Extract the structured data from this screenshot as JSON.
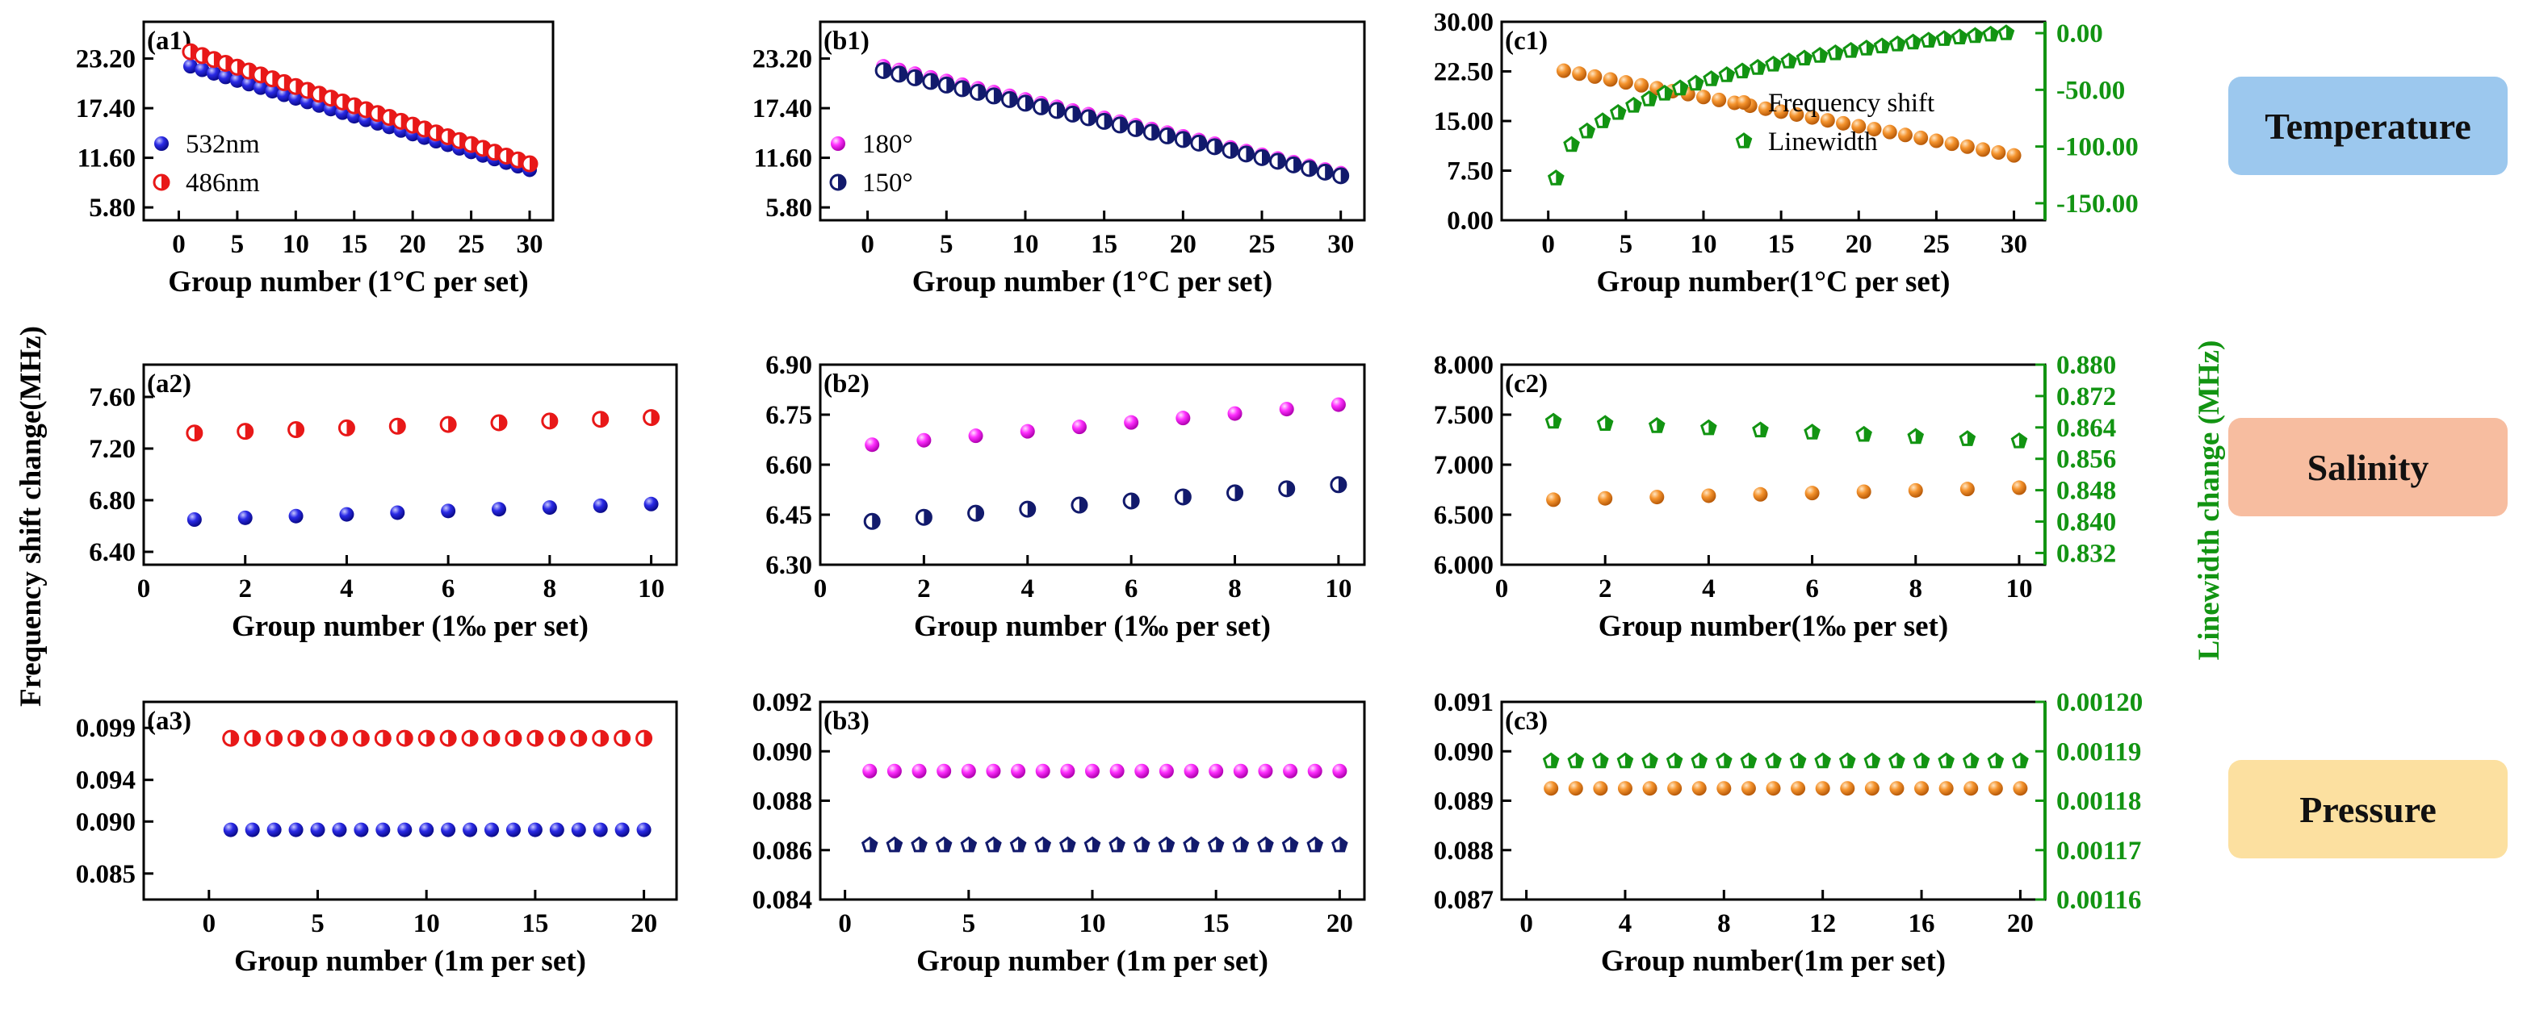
{
  "figure": {
    "ylabel_left": "Frequency shift change(MHz)",
    "ylabel_right": "Linewidth change (MHz)",
    "badges": [
      {
        "label": "Temperature",
        "color": "#9cc8ee"
      },
      {
        "label": "Salinity",
        "color": "#f7bda0"
      },
      {
        "label": "Pressure",
        "color": "#fce0a0"
      }
    ]
  },
  "colors": {
    "blue": "#1f1fdc",
    "red": "#e81818",
    "magenta": "#ff2cff",
    "navy": "#121a6c",
    "orange": "#f18e28",
    "green": "#129412"
  },
  "chart_data": [
    {
      "id": "a1",
      "tag": "(a1)",
      "type": "scatter",
      "xlabel": "Group number (1°C per set)",
      "xlim": [
        -3,
        32
      ],
      "xticks": [
        0,
        5,
        10,
        15,
        20,
        25,
        30
      ],
      "ylim": [
        4.3,
        27.5
      ],
      "yticks": [
        5.8,
        11.6,
        17.4,
        23.2
      ],
      "ytick_labels": [
        "5.80",
        "11.60",
        "17.40",
        "23.20"
      ],
      "legend": {
        "position": "lower-left",
        "entries": [
          {
            "label": "532nm",
            "series": 0
          },
          {
            "label": "486nm",
            "series": 1
          }
        ]
      },
      "series": [
        {
          "name": "532nm",
          "marker": "sphere",
          "color": "blue",
          "x_start": 1,
          "x_end": 30,
          "x_step": 1,
          "y_start": 22.3,
          "y_end": 10.2
        },
        {
          "name": "486nm",
          "marker": "half",
          "color": "red",
          "x_start": 1,
          "x_end": 30,
          "x_step": 1,
          "y_start": 24.0,
          "y_end": 10.9
        }
      ]
    },
    {
      "id": "b1",
      "tag": "(b1)",
      "type": "scatter",
      "xlabel": "Group number (1°C per set)",
      "xlim": [
        -3,
        31.5
      ],
      "xticks": [
        0,
        5,
        10,
        15,
        20,
        25,
        30
      ],
      "ylim": [
        4.3,
        27.5
      ],
      "yticks": [
        5.8,
        11.6,
        17.4,
        23.2
      ],
      "ytick_labels": [
        "5.80",
        "11.60",
        "17.40",
        "23.20"
      ],
      "legend": {
        "position": "lower-left",
        "entries": [
          {
            "label": "180°",
            "series": 0
          },
          {
            "label": "150°",
            "series": 1
          }
        ]
      },
      "series": [
        {
          "name": "180°",
          "marker": "sphere",
          "color": "magenta",
          "x_start": 1,
          "x_end": 30,
          "x_step": 1,
          "y_start": 22.3,
          "y_end": 9.8
        },
        {
          "name": "150°",
          "marker": "half",
          "color": "navy",
          "x_start": 1,
          "x_end": 30,
          "x_step": 1,
          "y_start": 21.8,
          "y_end": 9.5
        }
      ]
    },
    {
      "id": "c1",
      "tag": "(c1)",
      "type": "scatter",
      "xlabel": "Group number(1°C per set)",
      "xlim": [
        -3,
        32
      ],
      "xticks": [
        0,
        5,
        10,
        15,
        20,
        25,
        30
      ],
      "ylim": [
        0,
        30
      ],
      "yticks": [
        0,
        7.5,
        15,
        22.5,
        30
      ],
      "ytick_labels": [
        "0.00",
        "7.50",
        "15.00",
        "22.50",
        "30.00"
      ],
      "y2lim": [
        -165,
        10
      ],
      "y2ticks": [
        -150,
        -100,
        -50,
        0
      ],
      "y2tick_labels": [
        "-150.00",
        "-100.00",
        "-50.00",
        "0.00"
      ],
      "legend": {
        "position": "middle",
        "entries": [
          {
            "label": "Frequency shift",
            "series": 0
          },
          {
            "label": "Linewidth",
            "series": 1
          }
        ]
      },
      "series": [
        {
          "name": "Frequency shift",
          "marker": "sphere",
          "color": "orange",
          "axis": "left",
          "x_start": 1,
          "x_end": 30,
          "x_step": 1,
          "y_start": 22.6,
          "y_end": 9.8
        },
        {
          "name": "Linewidth",
          "marker": "pent",
          "color": "green",
          "axis": "right",
          "x_start": 0.5,
          "x_end": 29.5,
          "x_step": 1,
          "y_start": -128,
          "y_end": 0,
          "curve": "sqrt"
        }
      ]
    },
    {
      "id": "a2",
      "tag": "(a2)",
      "type": "scatter",
      "xlabel": "Group number (1‰ per set)",
      "xlim": [
        0,
        10.5
      ],
      "xticks": [
        0,
        2,
        4,
        6,
        8,
        10
      ],
      "ylim": [
        6.3,
        7.85
      ],
      "yticks": [
        6.4,
        6.8,
        7.2,
        7.6
      ],
      "ytick_labels": [
        "6.40",
        "6.80",
        "7.20",
        "7.60"
      ],
      "series": [
        {
          "name": "532nm",
          "marker": "sphere",
          "color": "blue",
          "x_start": 1,
          "x_end": 10,
          "x_step": 1,
          "y_start": 6.65,
          "y_end": 6.77
        },
        {
          "name": "486nm",
          "marker": "half",
          "color": "red",
          "x_start": 1,
          "x_end": 10,
          "x_step": 1,
          "y_start": 7.32,
          "y_end": 7.44
        }
      ]
    },
    {
      "id": "b2",
      "tag": "(b2)",
      "type": "scatter",
      "xlabel": "Group number (1‰ per set)",
      "xlim": [
        0,
        10.5
      ],
      "xticks": [
        0,
        2,
        4,
        6,
        8,
        10
      ],
      "ylim": [
        6.3,
        6.9
      ],
      "yticks": [
        6.3,
        6.45,
        6.6,
        6.75,
        6.9
      ],
      "ytick_labels": [
        "6.30",
        "6.45",
        "6.60",
        "6.75",
        "6.90"
      ],
      "series": [
        {
          "name": "180°",
          "marker": "sphere",
          "color": "magenta",
          "x_start": 1,
          "x_end": 10,
          "x_step": 1,
          "y_start": 6.66,
          "y_end": 6.78
        },
        {
          "name": "150°",
          "marker": "half",
          "color": "navy",
          "x_start": 1,
          "x_end": 10,
          "x_step": 1,
          "y_start": 6.43,
          "y_end": 6.54
        }
      ]
    },
    {
      "id": "c2",
      "tag": "(c2)",
      "type": "scatter",
      "xlabel": "Group number(1‰ per set)",
      "xlim": [
        0,
        10.5
      ],
      "xticks": [
        0,
        2,
        4,
        6,
        8,
        10
      ],
      "ylim": [
        6.0,
        8.0
      ],
      "yticks": [
        6.0,
        6.5,
        7.0,
        7.5,
        8.0
      ],
      "ytick_labels": [
        "6.000",
        "6.500",
        "7.000",
        "7.500",
        "8.000"
      ],
      "y2lim": [
        0.829,
        0.88
      ],
      "y2ticks": [
        0.832,
        0.84,
        0.848,
        0.856,
        0.864,
        0.872,
        0.88
      ],
      "y2tick_labels": [
        "0.832",
        "0.840",
        "0.848",
        "0.856",
        "0.864",
        "0.872",
        "0.880"
      ],
      "series": [
        {
          "name": "Frequency shift",
          "marker": "sphere",
          "color": "orange",
          "axis": "left",
          "x_start": 1,
          "x_end": 10,
          "x_step": 1,
          "y_start": 6.65,
          "y_end": 6.77
        },
        {
          "name": "Linewidth",
          "marker": "pent",
          "color": "green",
          "axis": "right",
          "x_start": 1,
          "x_end": 10,
          "x_step": 1,
          "y_start": 0.8655,
          "y_end": 0.8605
        }
      ]
    },
    {
      "id": "a3",
      "tag": "(a3)",
      "type": "scatter",
      "xlabel": "Group number (1m per set)",
      "xlim": [
        -3,
        21.5
      ],
      "xticks": [
        0,
        5,
        10,
        15,
        20
      ],
      "ylim": [
        0.0825,
        0.1015
      ],
      "yticks": [
        0.085,
        0.09,
        0.094,
        0.099
      ],
      "ytick_labels": [
        "0.085",
        "0.090",
        "0.094",
        "0.099"
      ],
      "series": [
        {
          "name": "532nm",
          "marker": "sphere",
          "color": "blue",
          "x_start": 1,
          "x_end": 20,
          "x_step": 1,
          "y_start": 0.0892,
          "y_end": 0.0892
        },
        {
          "name": "486nm",
          "marker": "half",
          "color": "red",
          "x_start": 1,
          "x_end": 20,
          "x_step": 1,
          "y_start": 0.098,
          "y_end": 0.098
        }
      ]
    },
    {
      "id": "b3",
      "tag": "(b3)",
      "type": "scatter",
      "xlabel": "Group number (1m per set)",
      "xlim": [
        -1,
        21
      ],
      "xticks": [
        0,
        5,
        10,
        15,
        20
      ],
      "ylim": [
        0.084,
        0.092
      ],
      "yticks": [
        0.084,
        0.086,
        0.088,
        0.09,
        0.092
      ],
      "ytick_labels": [
        "0.084",
        "0.086",
        "0.088",
        "0.090",
        "0.092"
      ],
      "series": [
        {
          "name": "180°",
          "marker": "sphere",
          "color": "magenta",
          "x_start": 1,
          "x_end": 20,
          "x_step": 1,
          "y_start": 0.0892,
          "y_end": 0.0892
        },
        {
          "name": "150°",
          "marker": "pent",
          "color": "navy",
          "x_start": 1,
          "x_end": 20,
          "x_step": 1,
          "y_start": 0.0862,
          "y_end": 0.0862
        }
      ]
    },
    {
      "id": "c3",
      "tag": "(c3)",
      "type": "scatter",
      "xlabel": "Group number(1m per set)",
      "xlim": [
        -1,
        21
      ],
      "xticks": [
        0,
        4,
        8,
        12,
        16,
        20
      ],
      "ylim": [
        0.087,
        0.091
      ],
      "yticks": [
        0.087,
        0.088,
        0.089,
        0.09,
        0.091
      ],
      "ytick_labels": [
        "0.087",
        "0.088",
        "0.089",
        "0.090",
        "0.091"
      ],
      "y2lim": [
        0.00116,
        0.0012
      ],
      "y2ticks": [
        0.00116,
        0.00117,
        0.00118,
        0.00119,
        0.0012
      ],
      "y2tick_labels": [
        "0.00116",
        "0.00117",
        "0.00118",
        "0.00119",
        "0.00120"
      ],
      "series": [
        {
          "name": "Frequency shift",
          "marker": "sphere",
          "color": "orange",
          "axis": "left",
          "x_start": 1,
          "x_end": 20,
          "x_step": 1,
          "y_start": 0.08925,
          "y_end": 0.08925
        },
        {
          "name": "Linewidth",
          "marker": "pent",
          "color": "green",
          "axis": "right",
          "x_start": 1,
          "x_end": 20,
          "x_step": 1,
          "y_start": 0.001188,
          "y_end": 0.001188
        }
      ]
    }
  ]
}
